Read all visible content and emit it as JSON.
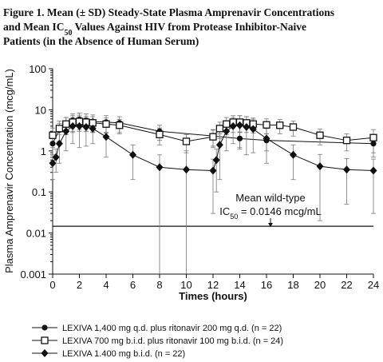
{
  "chart_data": {
    "type": "line",
    "title_lines": [
      "Figure 1. Mean (± SD) Steady-State Plasma Amprenavir Concentrations",
      [
        "and Mean IC",
        "50",
        " Values Against HIV from Protease Inhibitor-Naive"
      ],
      "Patients (in the Absence of Human Serum)"
    ],
    "x_label": "Times (hours)",
    "y_label": "Plasma Amprenavir Concentration (mcg/mL)",
    "xlim": [
      0,
      24
    ],
    "xticks": [
      0,
      2,
      4,
      6,
      8,
      10,
      12,
      14,
      16,
      18,
      20,
      22,
      24
    ],
    "ylim": [
      0.001,
      100
    ],
    "yticks": [
      0.001,
      0.01,
      0.1,
      1,
      10,
      100
    ],
    "log_y": true,
    "reference_line": 0.0146,
    "annotation": [
      "Mean wild-type",
      [
        "IC",
        "50",
        " = 0.0146 mcg/mL"
      ]
    ],
    "annotation_x": 16.3,
    "series": [
      {
        "name": "LEXIVA 1,400 mg q.d. plus ritonavir 200 mg q.d. (n = 22)",
        "color": "#111111",
        "marker": "circle",
        "x": [
          0,
          0.5,
          1,
          1.5,
          2,
          2.5,
          3,
          4,
          5,
          8,
          12,
          14,
          16,
          24
        ],
        "values": [
          1.5,
          3.2,
          4.5,
          5.5,
          5.8,
          5.5,
          5.2,
          5,
          4.8,
          3,
          2.3,
          2,
          1.8,
          1.5
        ],
        "errors": [
          0.8,
          1.5,
          2,
          2.5,
          2.5,
          2.5,
          2.3,
          2.2,
          2,
          1.2,
          1,
          0.9,
          0.8,
          0.8
        ]
      },
      {
        "name": "LEXIVA 700 mg b.i.d. plus ritonavir 100 mg b.i.d. (n = 24)",
        "color": "#111111",
        "marker": "square",
        "x": [
          0,
          0.5,
          1,
          1.5,
          2,
          2.5,
          3,
          4,
          5,
          8,
          10,
          12,
          12.5,
          13,
          13.5,
          14,
          14.5,
          15,
          16,
          17,
          18,
          20,
          22,
          24
        ],
        "values": [
          2.4,
          3.5,
          4.5,
          5,
          5.2,
          5,
          4.8,
          4.5,
          4.2,
          2.5,
          1.7,
          2.2,
          3.5,
          4.5,
          5,
          5,
          4.8,
          4.5,
          4.3,
          4.2,
          3.8,
          2.4,
          1.8,
          2.1
        ],
        "errors": [
          1.2,
          1.8,
          2,
          2.2,
          2.2,
          2,
          2,
          1.8,
          1.6,
          1.1,
          0.8,
          1,
          1.5,
          2,
          2.2,
          2.2,
          2,
          1.8,
          1.7,
          1.6,
          1.5,
          1,
          0.8,
          1.2
        ]
      },
      {
        "name": "LEXIVA 1.400 mg b.i.d. (n = 22)",
        "color": "#111111",
        "marker": "diamond",
        "x": [
          0,
          0.25,
          0.5,
          1,
          1.5,
          2,
          2.5,
          3,
          4,
          6,
          8,
          10,
          12,
          12.25,
          12.5,
          13,
          13.5,
          14,
          14.5,
          15,
          16,
          18,
          20,
          22,
          24
        ],
        "values": [
          0.5,
          0.7,
          1.5,
          3,
          4,
          4,
          3.8,
          3.5,
          2.2,
          0.8,
          0.4,
          0.35,
          0.33,
          0.6,
          1.4,
          3,
          4,
          4.2,
          3.8,
          3.4,
          2,
          0.8,
          0.42,
          0.35,
          0.33
        ],
        "errors": [
          0.3,
          0.4,
          1,
          2,
          2.5,
          2.8,
          2.5,
          2,
          1.5,
          0.6,
          0.4,
          0.65,
          0.3,
          0.5,
          1.2,
          2,
          2.5,
          3,
          3,
          2.5,
          1.5,
          0.6,
          0.4,
          0.3,
          0.3
        ]
      }
    ]
  }
}
